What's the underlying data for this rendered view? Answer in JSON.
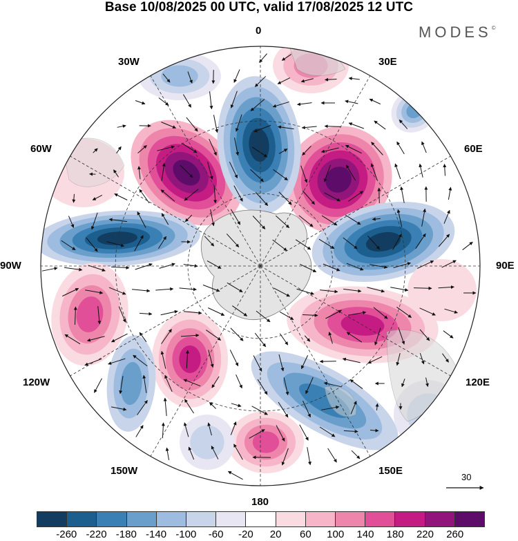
{
  "title": "Base 10/08/2025 00 UTC, valid 17/08/2025 12 UTC",
  "brand": "MODES",
  "brand_mark": "©",
  "map": {
    "projection": "south-polar-stereographic",
    "longitude_labels": {
      "lon_0": "0",
      "lon_30e": "30E",
      "lon_60e": "60E",
      "lon_90e": "90E",
      "lon_120e": "120E",
      "lon_150e": "150E",
      "lon_180": "180",
      "lon_150w": "150W",
      "lon_120w": "120W",
      "lon_90w": "90W",
      "lon_60w": "60W",
      "lon_30w": "30W"
    },
    "vector_reference": "30"
  },
  "colorbar": {
    "colors": [
      "#123c60",
      "#1c5e8e",
      "#3a80b5",
      "#6a9fcb",
      "#9dbcdf",
      "#c8d4ea",
      "#e8e6f2",
      "#ffffff",
      "#fbdbe2",
      "#f6b5c8",
      "#ee86ac",
      "#e04f97",
      "#c41c83",
      "#91157a",
      "#5d0c6a"
    ],
    "ticks": [
      "-260",
      "-220",
      "-180",
      "-140",
      "-100",
      "-60",
      "-20",
      "20",
      "60",
      "100",
      "140",
      "180",
      "220",
      "260"
    ]
  }
}
